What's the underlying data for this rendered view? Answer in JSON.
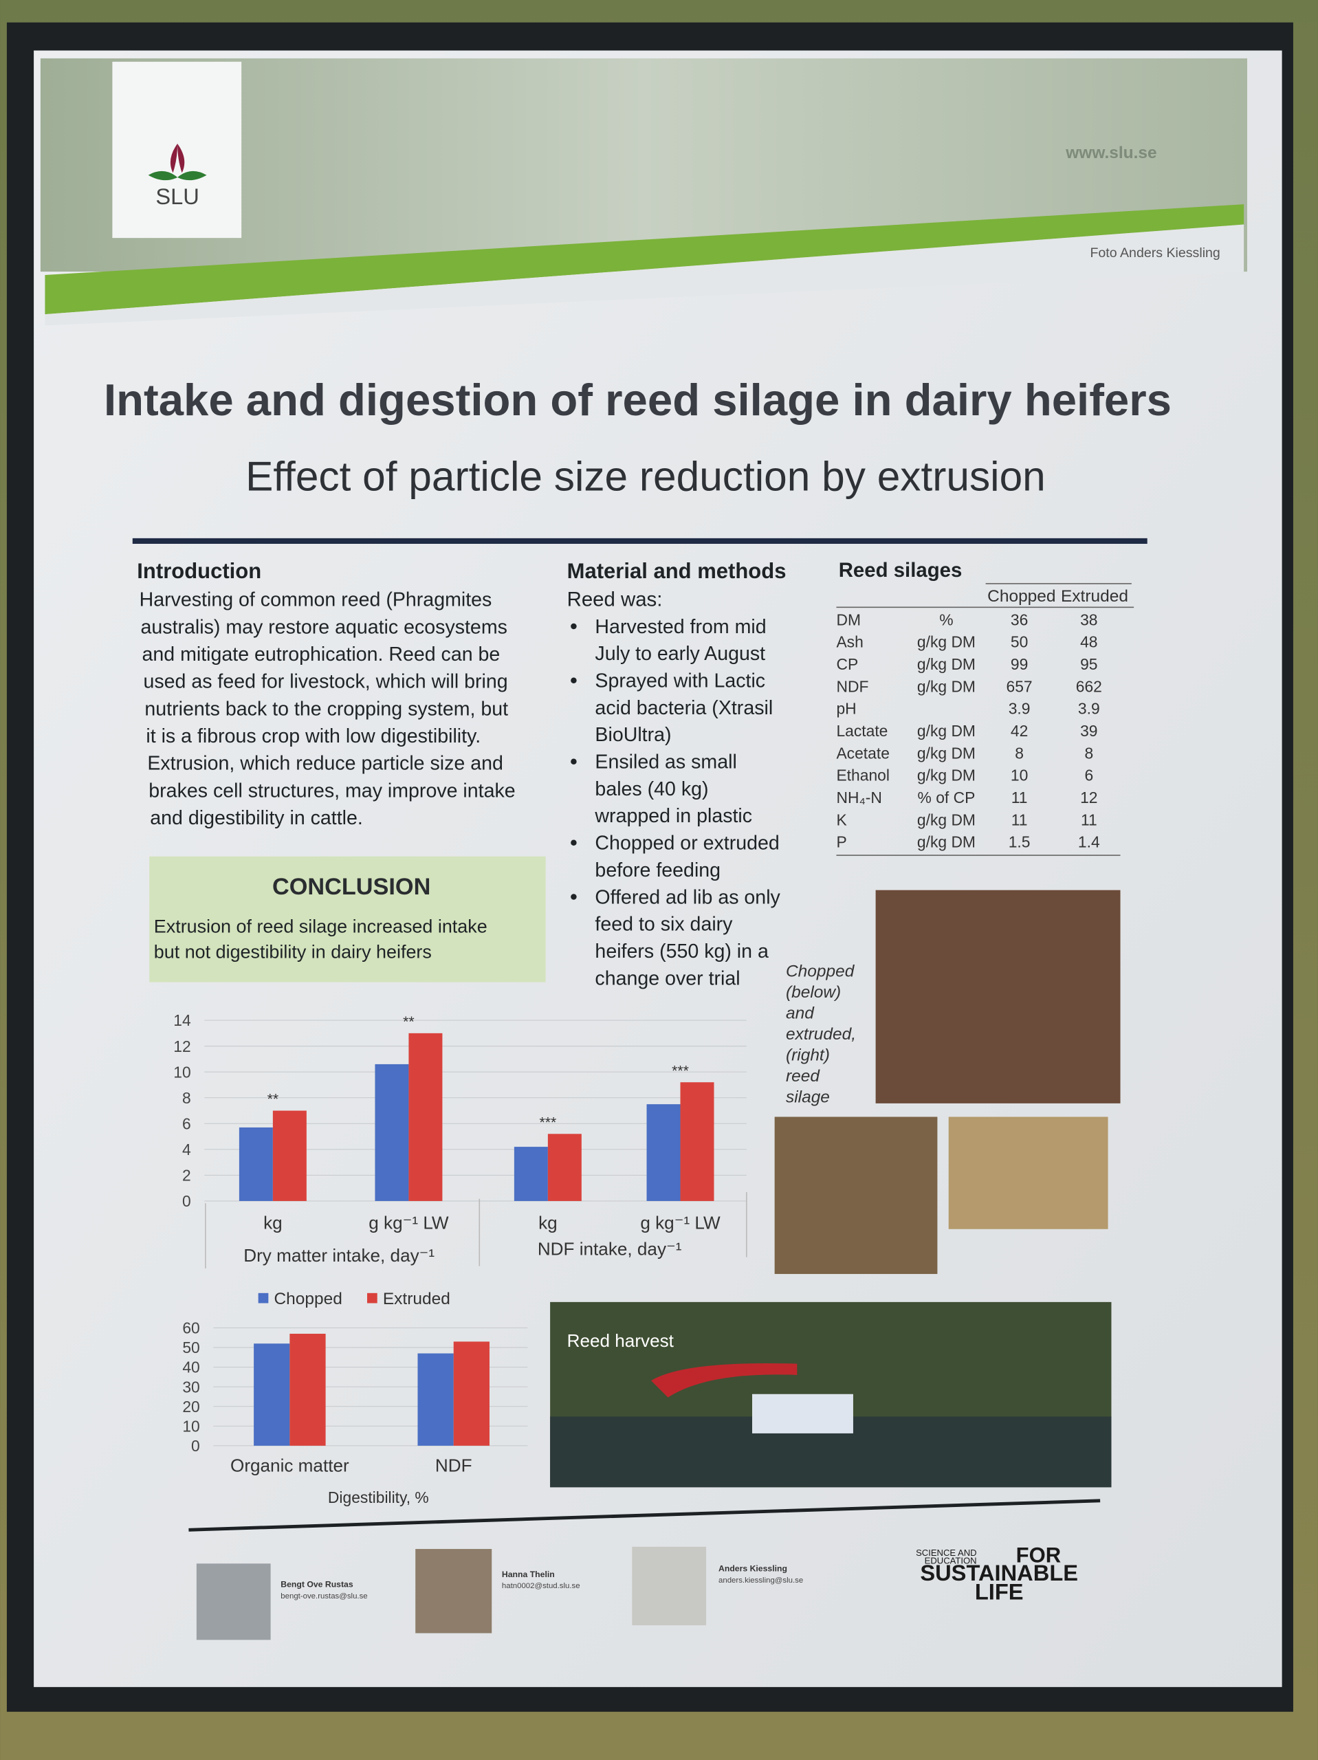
{
  "header": {
    "logo": "SLU",
    "url": "www.slu.se",
    "photo_credit": "Foto Anders Kiessling"
  },
  "title": "Intake and digestion of reed silage in dairy heifers",
  "subtitle": "Effect of particle size reduction by extrusion",
  "introduction": {
    "heading": "Introduction",
    "lines": [
      "Harvesting of common reed (Phragmites",
      "australis) may restore aquatic ecosystems",
      "and mitigate eutrophication. Reed can be",
      "used as feed for livestock, which will bring",
      "nutrients back to the cropping system, but",
      "it is a fibrous crop with low digestibility.",
      "Extrusion, which reduce particle size and",
      "brakes cell structures, may improve intake",
      "and digestibility in cattle."
    ]
  },
  "methods": {
    "heading": "Material and methods",
    "lead": "Reed was:",
    "items": [
      [
        "Harvested from mid",
        "July to early August"
      ],
      [
        "Sprayed with Lactic",
        "acid bacteria (Xtrasil",
        "BioUltra)"
      ],
      [
        "Ensiled as small",
        "bales (40 kg)",
        "wrapped in plastic"
      ],
      [
        "Chopped or extruded",
        "before feeding"
      ],
      [
        "Offered ad lib as only",
        "feed to six dairy",
        "heifers (550 kg) in a",
        "change over trial"
      ]
    ]
  },
  "table": {
    "title": "Reed silages",
    "columns": [
      "Chopped",
      "Extruded"
    ],
    "rows": [
      {
        "name": "DM",
        "unit": "%",
        "chopped": 36,
        "extruded": 38
      },
      {
        "name": "Ash",
        "unit": "g/kg DM",
        "chopped": 50,
        "extruded": 48
      },
      {
        "name": "CP",
        "unit": "g/kg DM",
        "chopped": 99,
        "extruded": 95
      },
      {
        "name": "NDF",
        "unit": "g/kg DM",
        "chopped": 657,
        "extruded": 662
      },
      {
        "name": "pH",
        "chopped": 3.9,
        "extruded": 3.9
      },
      {
        "name": "Lactate",
        "unit": "g/kg DM",
        "chopped": 42,
        "extruded": 39
      },
      {
        "name": "Acetate",
        "unit": "g/kg DM",
        "chopped": 8,
        "extruded": 8
      },
      {
        "name": "Ethanol",
        "unit": "g/kg DM",
        "chopped": 10,
        "extruded": 6
      },
      {
        "name": "NH₄-N",
        "unit": "% of CP",
        "chopped": 11,
        "extruded": 12
      },
      {
        "name": "K",
        "unit": "g/kg DM",
        "chopped": 11,
        "extruded": 11
      },
      {
        "name": "P",
        "unit": "g/kg DM",
        "chopped": 1.5,
        "extruded": 1.4
      }
    ]
  },
  "conclusion": {
    "heading": "CONCLUSION",
    "lines": [
      "Extrusion of reed silage increased intake",
      "but not digestibility in dairy heifers"
    ]
  },
  "photo_caption": [
    "Chopped",
    "(below)",
    "and",
    "extruded,",
    "(right)",
    "reed",
    "silage"
  ],
  "harvest_label": "Reed harvest",
  "intake_chart": {
    "type": "bar",
    "categories": [
      "kg",
      "g kg⁻¹ LW",
      "kg",
      "g kg⁻¹ LW"
    ],
    "groups": [
      "Dry matter intake, day⁻¹",
      "NDF intake, day⁻¹"
    ],
    "significance": [
      "**",
      "**",
      "***",
      "***"
    ],
    "series": [
      {
        "name": "Chopped",
        "color": "#4a6fc4",
        "values": [
          5.7,
          10.6,
          4.2,
          7.5
        ]
      },
      {
        "name": "Extruded",
        "color": "#d9423c",
        "values": [
          7.0,
          13.0,
          5.2,
          9.2
        ]
      }
    ],
    "ylim": [
      0,
      14
    ],
    "yticks": [
      0,
      2,
      4,
      6,
      8,
      10,
      12,
      14
    ],
    "grid": true
  },
  "digestibility_chart": {
    "type": "bar",
    "categories": [
      "Organic matter",
      "NDF"
    ],
    "xlabel": "Digestibility, %",
    "series": [
      {
        "color": "#4a6fc4",
        "values": [
          52,
          47
        ]
      },
      {
        "color": "#d9423c",
        "values": [
          57,
          53
        ]
      }
    ],
    "ylim": [
      0,
      60
    ],
    "yticks": [
      0,
      10,
      20,
      30,
      40,
      50,
      60
    ],
    "grid": true
  },
  "footer": {
    "authors": [
      {
        "name": "Bengt Ove Rustas",
        "email": "bengt-ove.rustas@slu.se"
      },
      {
        "name": "Hanna Thelin",
        "email": "hatn0002@stud.slu.se"
      },
      {
        "name": "Anders Kiessling",
        "email": "anders.kiessling@slu.se"
      }
    ],
    "slogan": [
      "SCIENCE AND",
      "EDUCATION",
      "FOR",
      "SUSTAINABLE",
      "LIFE"
    ]
  }
}
